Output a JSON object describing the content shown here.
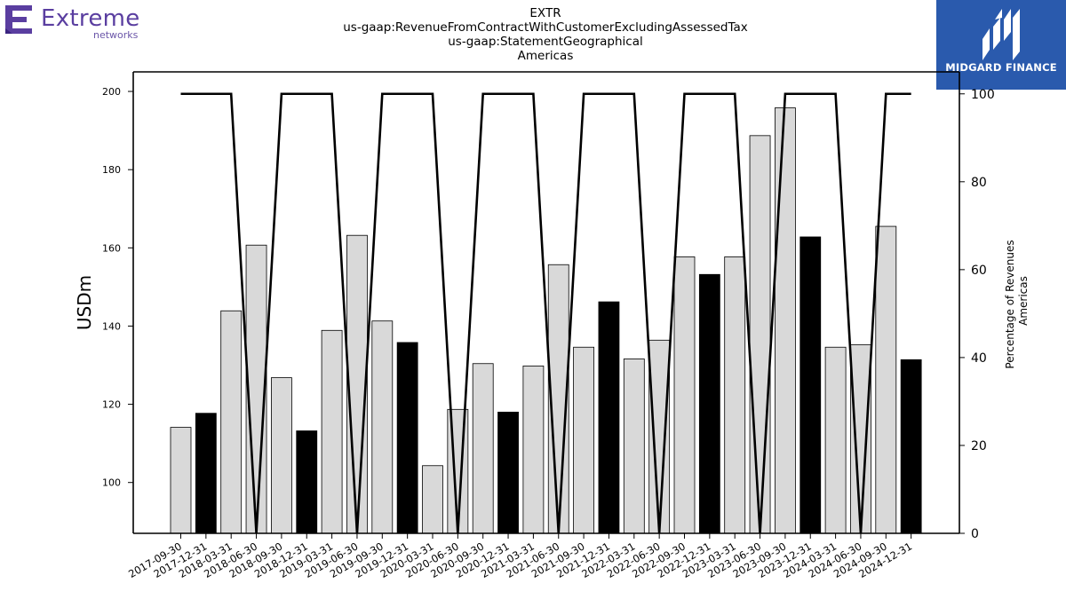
{
  "header": {
    "ticker": "EXTR",
    "concept": "us-gaap:RevenueFromContractWithCustomerExcludingAssessedTax",
    "axis": "us-gaap:StatementGeographical",
    "member": "Americas"
  },
  "logos": {
    "left_name": "Extreme",
    "left_sub": "networks",
    "left_color": "#5a3ea0",
    "right_name": "MIDGARD FINANCE",
    "right_color": "#2a5aad"
  },
  "chart_data": {
    "type": "bar",
    "ylabel": "USDm",
    "y2label_line1": "Percentage of Revenues",
    "y2label_line2": "Americas",
    "ylim": [
      87,
      205
    ],
    "y2lim": [
      0,
      105
    ],
    "yticks": [
      100,
      120,
      140,
      160,
      180,
      200
    ],
    "y2ticks": [
      0,
      20,
      40,
      60,
      80,
      100
    ],
    "categories": [
      "2017-09-30",
      "2017-12-31",
      "2018-03-31",
      "2018-06-30",
      "2018-09-30",
      "2018-12-31",
      "2019-03-31",
      "2019-06-30",
      "2019-09-30",
      "2019-12-31",
      "2020-03-31",
      "2020-06-30",
      "2020-09-30",
      "2020-12-31",
      "2021-03-31",
      "2021-06-30",
      "2021-09-30",
      "2021-12-31",
      "2022-03-31",
      "2022-06-30",
      "2022-09-30",
      "2022-12-31",
      "2023-03-31",
      "2023-06-30",
      "2023-09-30",
      "2023-12-31",
      "2024-03-31",
      "2024-06-30",
      "2024-09-30",
      "2024-12-31"
    ],
    "values": [
      114.1,
      117.7,
      143.9,
      160.7,
      126.8,
      113.2,
      138.9,
      163.2,
      141.3,
      135.8,
      104.3,
      118.7,
      130.4,
      118.0,
      129.8,
      155.7,
      134.6,
      146.2,
      131.6,
      136.4,
      157.7,
      153.2,
      157.7,
      188.7,
      195.8,
      162.8,
      134.6,
      135.2,
      165.5,
      131.4
    ],
    "highlight": [
      false,
      true,
      false,
      false,
      false,
      true,
      false,
      false,
      false,
      true,
      false,
      false,
      false,
      true,
      false,
      false,
      false,
      true,
      false,
      false,
      false,
      true,
      false,
      false,
      false,
      true,
      false,
      false,
      false,
      true
    ],
    "bar_color": "#d9d9d9",
    "highlight_color": "#000000",
    "line_series": {
      "name": "",
      "values": [
        100,
        100,
        100,
        0,
        100,
        100,
        100,
        0,
        100,
        100,
        100,
        0,
        100,
        100,
        100,
        0,
        100,
        100,
        100,
        0,
        100,
        100,
        100,
        0,
        100,
        100,
        100,
        0,
        100,
        100
      ],
      "color": "#000000"
    },
    "grid": false,
    "legend": "none"
  }
}
